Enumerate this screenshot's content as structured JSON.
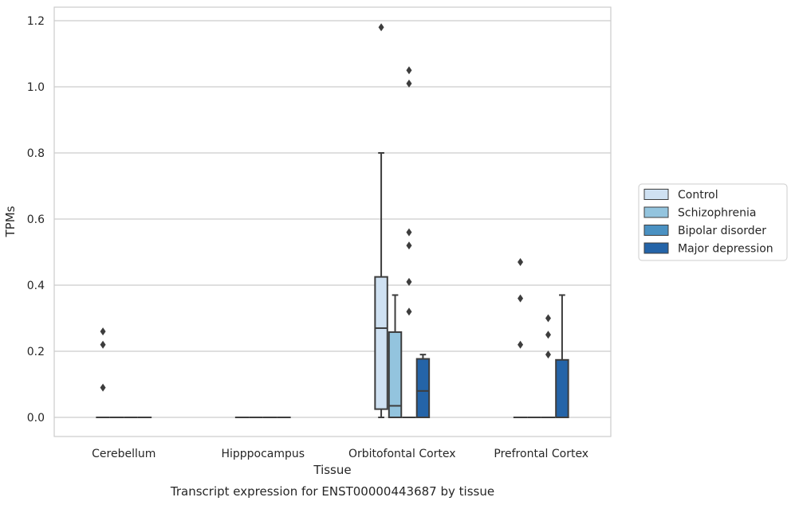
{
  "chart_data": {
    "type": "box",
    "title": "",
    "caption": "Transcript expression for ENST00000443687 by tissue",
    "xlabel": "Tissue",
    "ylabel": "TPMs",
    "ylim": [
      -0.057,
      1.24
    ],
    "yticks": [
      "0.0",
      "0.2",
      "0.4",
      "0.6",
      "0.8",
      "1.0",
      "1.2"
    ],
    "ytick_values": [
      0,
      0.2,
      0.4,
      0.6,
      0.8,
      1.0,
      1.2
    ],
    "grid": "horizontal",
    "legend_position": "right",
    "categories": [
      "Cerebellum",
      "Hipppocampus",
      "Orbitofontal Cortex",
      "Prefrontal Cortex"
    ],
    "series": [
      {
        "name": "Control",
        "color": "#cfe1f2",
        "boxes": [
          {
            "category": "Cerebellum",
            "q1": 0,
            "median": 0,
            "q3": 0,
            "whisker_low": 0,
            "whisker_high": 0,
            "outliers": [
              0.26,
              0.22,
              0.09
            ]
          },
          {
            "category": "Hipppocampus",
            "q1": 0,
            "median": 0,
            "q3": 0,
            "whisker_low": 0,
            "whisker_high": 0,
            "outliers": []
          },
          {
            "category": "Orbitofontal Cortex",
            "q1": 0.025,
            "median": 0.27,
            "q3": 0.425,
            "whisker_low": 0,
            "whisker_high": 0.8,
            "outliers": [
              1.18
            ]
          },
          {
            "category": "Prefrontal Cortex",
            "q1": 0,
            "median": 0,
            "q3": 0,
            "whisker_low": 0,
            "whisker_high": 0,
            "outliers": [
              0.47,
              0.36,
              0.22
            ]
          }
        ]
      },
      {
        "name": "Schizophrenia",
        "color": "#93c4de",
        "boxes": [
          {
            "category": "Cerebellum",
            "q1": 0,
            "median": 0,
            "q3": 0,
            "whisker_low": 0,
            "whisker_high": 0,
            "outliers": []
          },
          {
            "category": "Hipppocampus",
            "q1": 0,
            "median": 0,
            "q3": 0,
            "whisker_low": 0,
            "whisker_high": 0,
            "outliers": []
          },
          {
            "category": "Orbitofontal Cortex",
            "q1": 0,
            "median": 0.035,
            "q3": 0.258,
            "whisker_low": 0,
            "whisker_high": 0.37,
            "outliers": []
          },
          {
            "category": "Prefrontal Cortex",
            "q1": 0,
            "median": 0,
            "q3": 0,
            "whisker_low": 0,
            "whisker_high": 0,
            "outliers": []
          }
        ]
      },
      {
        "name": "Bipolar disorder",
        "color": "#4a91c2",
        "boxes": [
          {
            "category": "Cerebellum",
            "q1": 0,
            "median": 0,
            "q3": 0,
            "whisker_low": 0,
            "whisker_high": 0,
            "outliers": []
          },
          {
            "category": "Hipppocampus",
            "q1": 0,
            "median": 0,
            "q3": 0,
            "whisker_low": 0,
            "whisker_high": 0,
            "outliers": []
          },
          {
            "category": "Orbitofontal Cortex",
            "q1": 0,
            "median": 0,
            "q3": 0,
            "whisker_low": 0,
            "whisker_high": 0,
            "outliers": [
              1.05,
              1.01,
              0.56,
              0.52,
              0.41,
              0.32
            ]
          },
          {
            "category": "Prefrontal Cortex",
            "q1": 0,
            "median": 0,
            "q3": 0,
            "whisker_low": 0,
            "whisker_high": 0,
            "outliers": [
              0.3,
              0.25,
              0.19
            ]
          }
        ]
      },
      {
        "name": "Major depression",
        "color": "#2464a8",
        "boxes": [
          {
            "category": "Cerebellum",
            "q1": 0,
            "median": 0,
            "q3": 0,
            "whisker_low": 0,
            "whisker_high": 0,
            "outliers": []
          },
          {
            "category": "Hipppocampus",
            "q1": 0,
            "median": 0,
            "q3": 0,
            "whisker_low": 0,
            "whisker_high": 0,
            "outliers": []
          },
          {
            "category": "Orbitofontal Cortex",
            "q1": 0,
            "median": 0.08,
            "q3": 0.177,
            "whisker_low": 0,
            "whisker_high": 0.19,
            "outliers": []
          },
          {
            "category": "Prefrontal Cortex",
            "q1": 0,
            "median": 0,
            "q3": 0.174,
            "whisker_low": 0,
            "whisker_high": 0.37,
            "outliers": []
          }
        ]
      }
    ]
  }
}
